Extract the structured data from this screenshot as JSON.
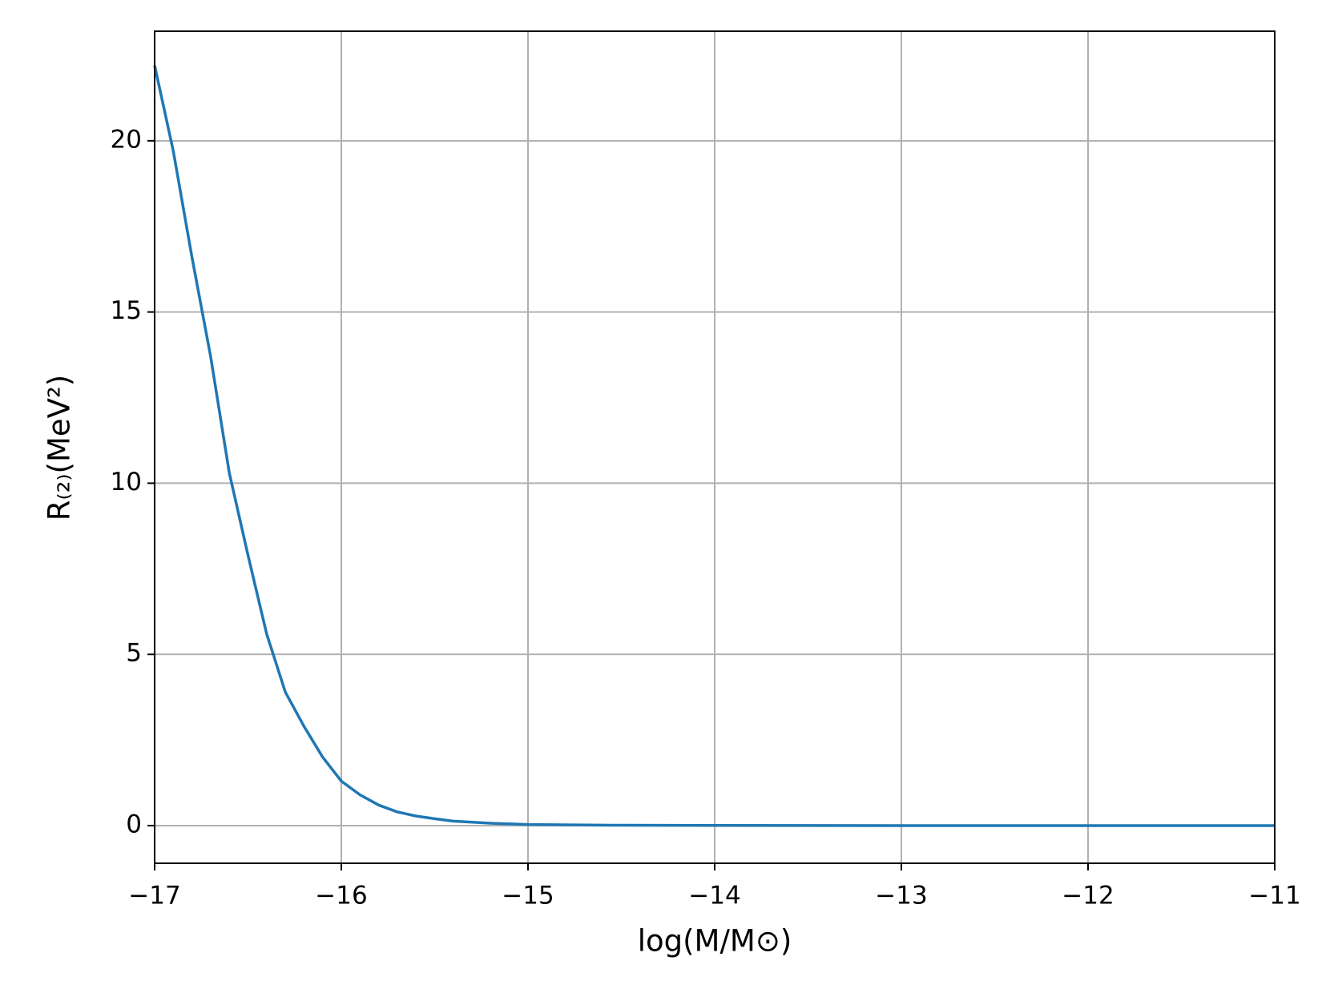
{
  "chart_data": {
    "type": "line",
    "x_label": "log(M/M⊙)",
    "y_label": "R₍₂₎(MeV²)",
    "x": [
      -17,
      -16.9,
      -16.8,
      -16.7,
      -16.6,
      -16.5,
      -16.4,
      -16.3,
      -16.2,
      -16.1,
      -16,
      -15.9,
      -15.8,
      -15.7,
      -15.6,
      -15.5,
      -15.4,
      -15.2,
      -15,
      -14.5,
      -14,
      -13,
      -12,
      -11
    ],
    "series": [
      {
        "color": "#1f77b4",
        "values": [
          22.2,
          19.7,
          16.6,
          13.7,
          10.3,
          7.9,
          5.6,
          3.9,
          2.9,
          2.0,
          1.3,
          0.9,
          0.6,
          0.4,
          0.28,
          0.2,
          0.13,
          0.07,
          0.03,
          0.01,
          0.005,
          0,
          0,
          0
        ]
      }
    ],
    "xlim": [
      -17,
      -11
    ],
    "ylim": [
      -1.1,
      23.2
    ],
    "xticks": [
      {
        "value": -17,
        "label": "−17"
      },
      {
        "value": -16,
        "label": "−16"
      },
      {
        "value": -15,
        "label": "−15"
      },
      {
        "value": -14,
        "label": "−14"
      },
      {
        "value": -13,
        "label": "−13"
      },
      {
        "value": -12,
        "label": "−12"
      },
      {
        "value": -11,
        "label": "−11"
      }
    ],
    "yticks": [
      0,
      5,
      10,
      15,
      20
    ],
    "grid": true
  }
}
